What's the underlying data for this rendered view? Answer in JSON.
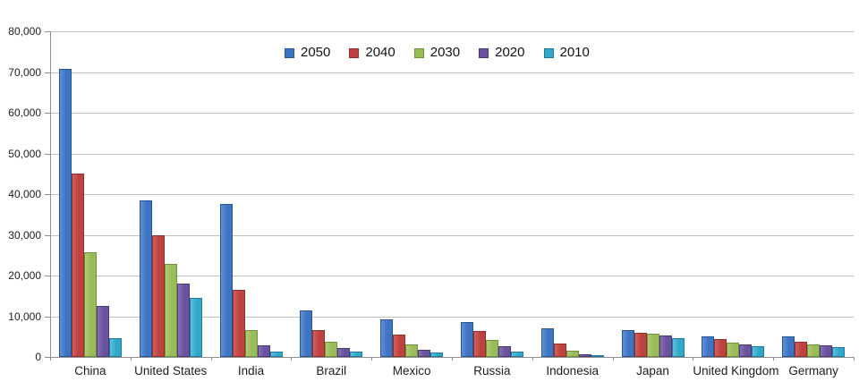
{
  "chart_data": {
    "type": "bar",
    "title": "",
    "xlabel": "",
    "ylabel": "",
    "categories": [
      "China",
      "United States",
      "India",
      "Brazil",
      "Mexico",
      "Russia",
      "Indonesia",
      "Japan",
      "United Kingdom",
      "Germany"
    ],
    "series": [
      {
        "name": "2050",
        "fill": "#3E74C4",
        "fill_light": "#6090D4",
        "border": "#2A5590",
        "values": [
          70710,
          38514,
          37668,
          11366,
          9340,
          8580,
          7010,
          6677,
          5133,
          5024
        ]
      },
      {
        "name": "2040",
        "fill": "#BE4340",
        "fill_light": "#D2605C",
        "border": "#8F2F2D",
        "values": [
          45022,
          29823,
          16510,
          6631,
          5471,
          6320,
          3286,
          6042,
          4344,
          3714
        ]
      },
      {
        "name": "2030",
        "fill": "#9ABB59",
        "fill_light": "#B0CC72",
        "border": "#71923C",
        "values": [
          25610,
          22817,
          6683,
          3720,
          3068,
          4265,
          1479,
          5814,
          3595,
          3089
        ]
      },
      {
        "name": "2020",
        "fill": "#6A529E",
        "fill_light": "#8670B4",
        "border": "#4B3973",
        "values": [
          12630,
          17978,
          2848,
          2194,
          1742,
          2554,
          752,
          5224,
          3101,
          2905
        ]
      },
      {
        "name": "2010",
        "fill": "#31A8CA",
        "fill_light": "#5CC0DC",
        "border": "#217A96",
        "values": [
          4667,
          14535,
          1256,
          1346,
          1009,
          1371,
          419,
          4604,
          2546,
          2524
        ]
      }
    ],
    "ylim": [
      0,
      80000
    ],
    "ytick_step": 10000,
    "ytick_labels": [
      "0",
      "10,000",
      "20,000",
      "30,000",
      "40,000",
      "50,000",
      "60,000",
      "70,000",
      "80,000"
    ],
    "grid": true,
    "legend_position": "top-center",
    "legend_entries": [
      "2050",
      "2040",
      "2030",
      "2020",
      "2010"
    ],
    "colors": {
      "background": "#ffffff",
      "gridline": "#c2c2c2",
      "axis": "#8f8f8f",
      "text": "#1d1d1d"
    }
  }
}
